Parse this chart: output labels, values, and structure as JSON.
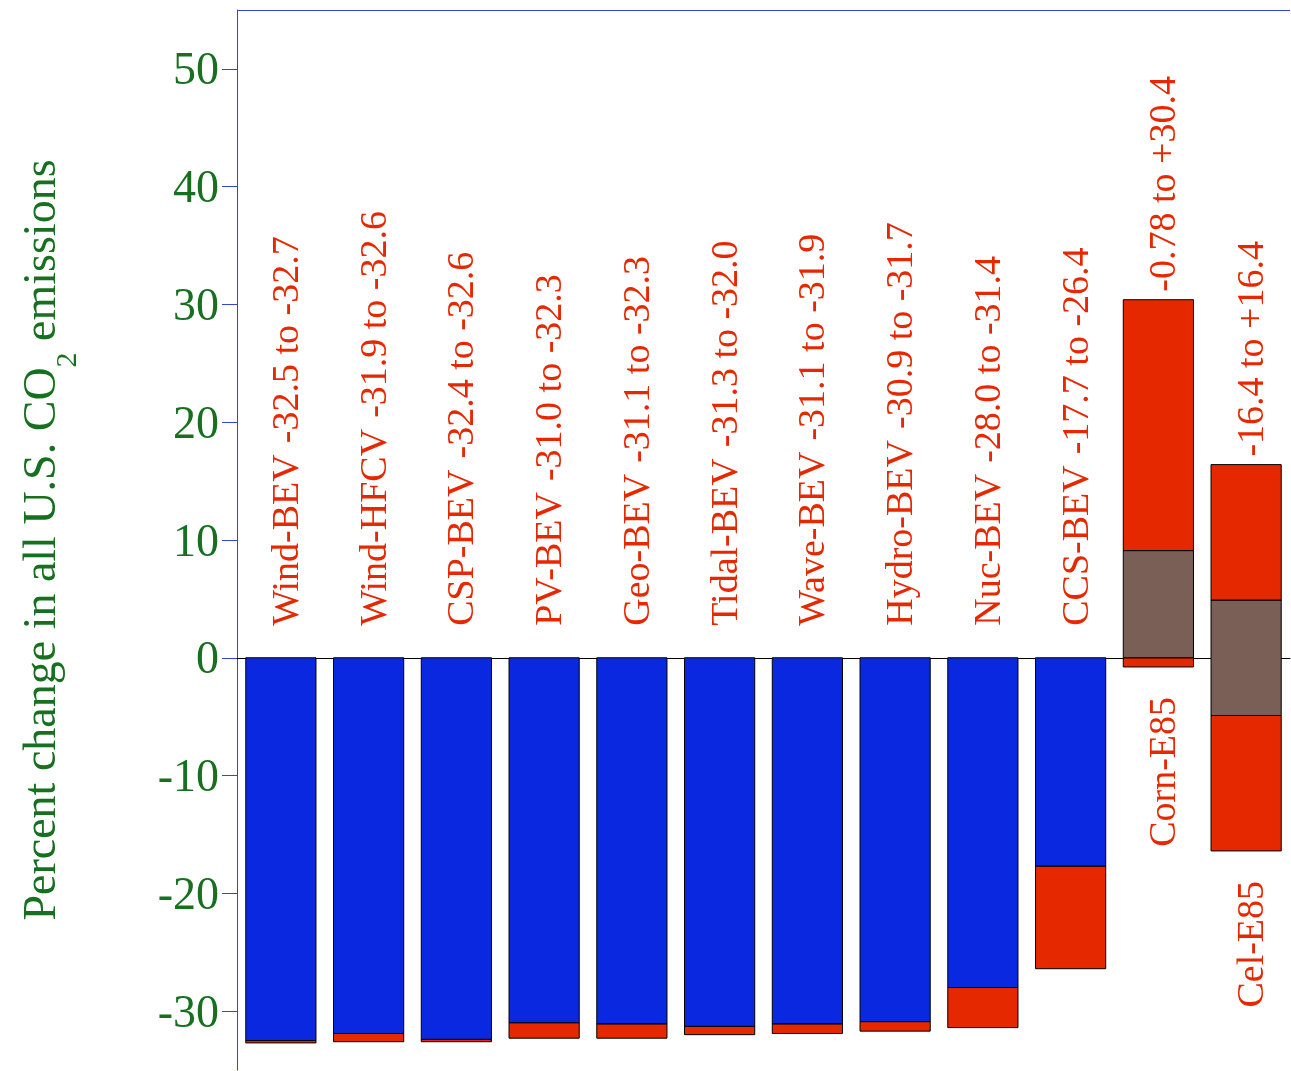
{
  "chart_data": {
    "type": "bar",
    "ylabel": "Percent change in all U.S. CO$_{2}$ emissions",
    "annotations": [
      "-32.5 to -32.7",
      "-31.9 to -32.6",
      "-32.4 to -32.6",
      "-31.0 to -32.3",
      "-31.1 to -32.3",
      "-31.3 to -32.0",
      "-31.1 to -31.9",
      "-30.9 to -31.7",
      "-28.0 to -31.4",
      "-17.7 to -26.4",
      "-0.78 to +30.4",
      "-16.4 to +16.4"
    ],
    "categories": [
      "Wind-BEV",
      "Wind-HFCV",
      "CSP-BEV",
      "PV-BEV",
      "Geo-BEV",
      "Tidal-BEV",
      "Wave-BEV",
      "Hydro-BEV",
      "Nuc-BEV",
      "CCS-BEV",
      "Corn-E85",
      "Cel-E85"
    ],
    "series": [
      {
        "color": "#0a28e0",
        "base": [
          0,
          0,
          0,
          0,
          0,
          0,
          0,
          0,
          0,
          0,
          null,
          null
        ],
        "values": [
          -32.5,
          -31.9,
          -32.4,
          -31.0,
          -31.1,
          -31.3,
          -31.1,
          -30.9,
          -28.0,
          -17.7,
          null,
          null
        ]
      },
      {
        "color": "#e62800",
        "base": [
          -32.5,
          -31.9,
          -32.4,
          -31.0,
          -31.1,
          -31.3,
          -31.1,
          -30.9,
          -28.0,
          -17.7,
          -0.78,
          -16.4
        ],
        "values": [
          -0.2,
          -0.7,
          -0.2,
          -1.3,
          -1.2,
          -0.7,
          -0.8,
          -0.8,
          -3.4,
          -8.7,
          0.78,
          11.5
        ]
      },
      {
        "color": "#7a5f57",
        "base": [
          null,
          null,
          null,
          null,
          null,
          null,
          null,
          null,
          null,
          null,
          0,
          -4.9
        ],
        "values": [
          null,
          null,
          null,
          null,
          null,
          null,
          null,
          null,
          null,
          null,
          9.1,
          9.8
        ]
      },
      {
        "color": "#e62800",
        "base": [
          null,
          null,
          null,
          null,
          null,
          null,
          null,
          null,
          null,
          null,
          9.1,
          4.9
        ],
        "values": [
          null,
          null,
          null,
          null,
          null,
          null,
          null,
          null,
          null,
          null,
          21.3,
          11.5
        ]
      }
    ],
    "ylim": [
      -35,
      55
    ],
    "yticks": [
      -30,
      -20,
      -10,
      0,
      10,
      20,
      30,
      40,
      50
    ],
    "legend": false
  }
}
